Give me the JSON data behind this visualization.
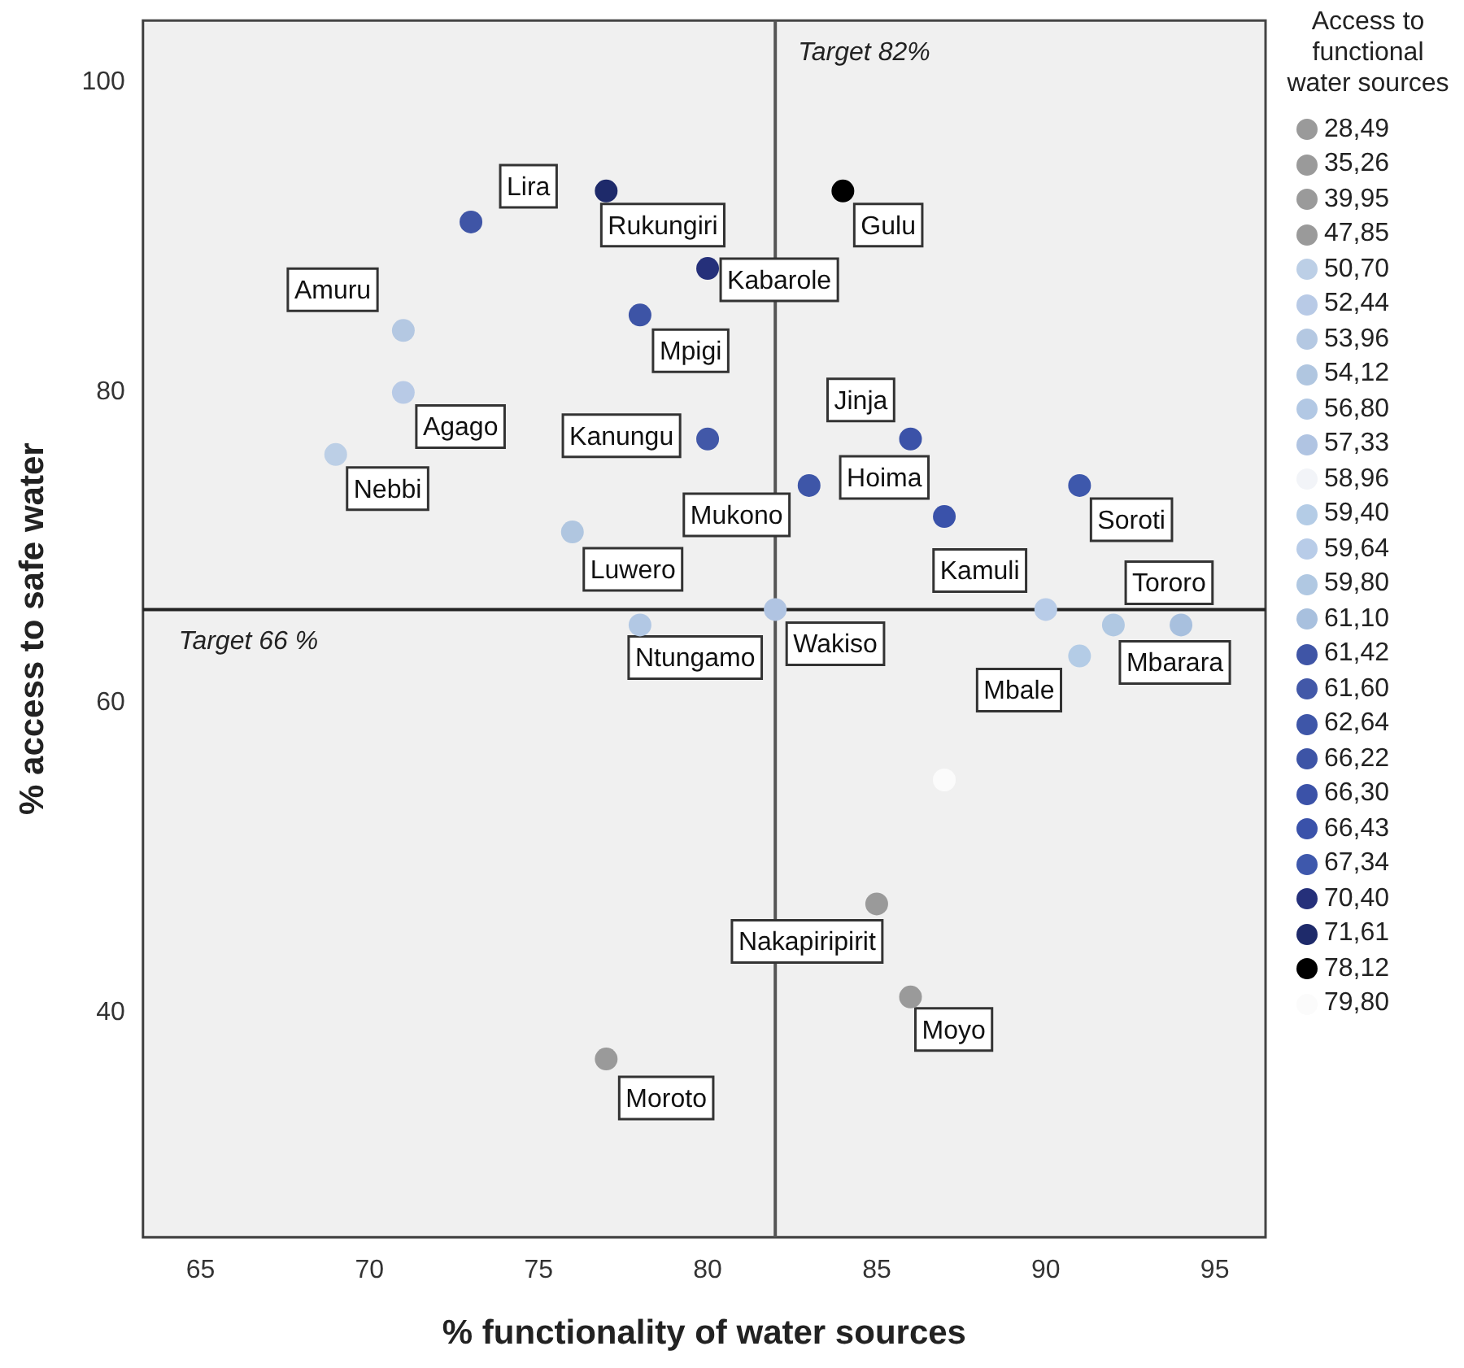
{
  "chart_data": {
    "type": "scatter",
    "xlabel": "% functionality of water sources",
    "ylabel": "% access to safe water",
    "legend_title": "Access to functional water sources",
    "legend": "right",
    "grid": false,
    "marker": "circle",
    "xlim": [
      63.3,
      96.5
    ],
    "ylim": [
      25.5,
      104
    ],
    "xticks": [
      65,
      70,
      75,
      80,
      85,
      90,
      95
    ],
    "yticks": [
      40,
      60,
      80,
      100
    ],
    "series": [
      {
        "name": "28,49",
        "color": "#9a9a9a"
      },
      {
        "name": "35,26",
        "color": "#9a9a9a",
        "x": [
          77
        ],
        "values": [
          37
        ]
      },
      {
        "name": "39,95",
        "color": "#9a9a9a",
        "x": [
          86
        ],
        "values": [
          41
        ]
      },
      {
        "name": "47,85",
        "color": "#9a9a9a",
        "x": [
          85
        ],
        "values": [
          47
        ]
      },
      {
        "name": "50,70",
        "color": "#bccfe6",
        "x": [
          69
        ],
        "values": [
          76
        ]
      },
      {
        "name": "52,44",
        "color": "#b8cae6",
        "x": [
          71
        ],
        "values": [
          80
        ]
      },
      {
        "name": "53,96",
        "color": "#b4c8e2",
        "x": [
          71
        ],
        "values": [
          84
        ]
      },
      {
        "name": "54,12",
        "color": "#b0c6e0",
        "x": [
          76
        ],
        "values": [
          71
        ]
      },
      {
        "name": "56,80",
        "color": "#b2c8e4",
        "x": [
          78
        ],
        "values": [
          65
        ]
      },
      {
        "name": "57,33",
        "color": "#b0c4e2",
        "x": [
          82
        ],
        "values": [
          66
        ]
      },
      {
        "name": "58,96",
        "color": "#f2f4f8"
      },
      {
        "name": "59,40",
        "color": "#b4cce6",
        "x": [
          91
        ],
        "values": [
          63
        ]
      },
      {
        "name": "59,64",
        "color": "#b8cce8",
        "x": [
          90
        ],
        "values": [
          66
        ]
      },
      {
        "name": "59,80",
        "color": "#b0c8e2",
        "x": [
          92
        ],
        "values": [
          65
        ]
      },
      {
        "name": "61,10",
        "color": "#a8c0de",
        "x": [
          94
        ],
        "values": [
          65
        ]
      },
      {
        "name": "61,42",
        "color": "#3f55a6",
        "x": [
          73
        ],
        "values": [
          91
        ]
      },
      {
        "name": "61,60",
        "color": "#4258a8",
        "x": [
          80
        ],
        "values": [
          77
        ]
      },
      {
        "name": "62,64",
        "color": "#3e56a8",
        "x": [
          83
        ],
        "values": [
          74
        ]
      },
      {
        "name": "66,22",
        "color": "#3d54a6",
        "x": [
          78
        ],
        "values": [
          85
        ]
      },
      {
        "name": "66,30",
        "color": "#3b52a8",
        "x": [
          86
        ],
        "values": [
          77
        ]
      },
      {
        "name": "66,43",
        "color": "#3a52aa",
        "x": [
          87
        ],
        "values": [
          72
        ]
      },
      {
        "name": "67,34",
        "color": "#3e58ac",
        "x": [
          91
        ],
        "values": [
          74
        ]
      },
      {
        "name": "70,40",
        "color": "#25307a",
        "x": [
          80
        ],
        "values": [
          88
        ]
      },
      {
        "name": "71,61",
        "color": "#1e2a6a",
        "x": [
          77
        ],
        "values": [
          93
        ]
      },
      {
        "name": "78,12",
        "color": "#000000",
        "x": [
          84
        ],
        "values": [
          93
        ]
      },
      {
        "name": "79,80",
        "color": "#fbfbfb",
        "x": [
          87
        ],
        "values": [
          55
        ]
      }
    ],
    "ref_lines": [
      {
        "axis": "x",
        "value": 82,
        "label": "Target 82%",
        "color": "#555555"
      },
      {
        "axis": "y",
        "value": 66,
        "label": "Target 66 %",
        "color": "#222222"
      }
    ],
    "annotations": [
      {
        "text": "Lira",
        "x": 73,
        "y": 91
      },
      {
        "text": "Rukungiri",
        "x": 77,
        "y": 93
      },
      {
        "text": "Kabarole",
        "x": 80,
        "y": 88
      },
      {
        "text": "Mpigi",
        "x": 78,
        "y": 85
      },
      {
        "text": "Amuru",
        "x": 71,
        "y": 84
      },
      {
        "text": "Agago",
        "x": 71,
        "y": 80
      },
      {
        "text": "Nebbi",
        "x": 69,
        "y": 76
      },
      {
        "text": "Kanungu",
        "x": 80,
        "y": 77
      },
      {
        "text": "Luwero",
        "x": 76,
        "y": 71
      },
      {
        "text": "Ntungamo",
        "x": 78,
        "y": 65
      },
      {
        "text": "Wakiso",
        "x": 82,
        "y": 66
      },
      {
        "text": "Gulu",
        "x": 84,
        "y": 93
      },
      {
        "text": "Jinja",
        "x": 86,
        "y": 77
      },
      {
        "text": "Mukono",
        "x": 83,
        "y": 74
      },
      {
        "text": "Hoima",
        "x": 87,
        "y": 72
      },
      {
        "text": "Kamuli",
        "x": 90,
        "y": 66
      },
      {
        "text": "Soroti",
        "x": 91,
        "y": 74
      },
      {
        "text": "Tororo",
        "x": 94,
        "y": 65
      },
      {
        "text": "Mbarara",
        "x": 92,
        "y": 65
      },
      {
        "text": "Mbale",
        "x": 91,
        "y": 63
      },
      {
        "text": "Nakapiripirit",
        "x": 85,
        "y": 47
      },
      {
        "text": "Moyo",
        "x": 86,
        "y": 41
      },
      {
        "text": "Moroto",
        "x": 77,
        "y": 37
      }
    ]
  }
}
